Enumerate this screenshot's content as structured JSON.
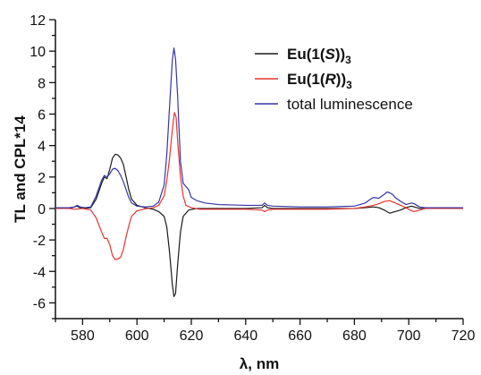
{
  "chart_data": {
    "type": "line",
    "xlabel": "λ, nm",
    "ylabel": "TL and CPL*14",
    "xlim": [
      570,
      720
    ],
    "ylim": [
      -7,
      12
    ],
    "x_ticks": [
      580,
      600,
      620,
      640,
      660,
      680,
      700,
      720
    ],
    "y_ticks": [
      -6,
      -4,
      -2,
      0,
      2,
      4,
      6,
      8,
      10,
      12
    ],
    "grid": false,
    "legend_position": "top-right",
    "legend": [
      {
        "prefix": "Eu(1(",
        "italic": "S",
        "suffix": "))",
        "sub": "3",
        "color": "#1a1a1a"
      },
      {
        "prefix": "Eu(1(",
        "italic": "R",
        "suffix": "))",
        "sub": "3",
        "color": "#e8332e"
      },
      {
        "text": "total luminescence",
        "color": "#3535a8"
      }
    ],
    "series": [
      {
        "name": "Eu(1(S))3",
        "color": "#1a1a1a",
        "points": [
          [
            570,
            0
          ],
          [
            575,
            0
          ],
          [
            577,
            0.1
          ],
          [
            578,
            0.15
          ],
          [
            579,
            0.05
          ],
          [
            581,
            0
          ],
          [
            583,
            0.05
          ],
          [
            585,
            0.6
          ],
          [
            587,
            1.6
          ],
          [
            588,
            2.0
          ],
          [
            589,
            1.9
          ],
          [
            590,
            2.5
          ],
          [
            591,
            3.2
          ],
          [
            592,
            3.45
          ],
          [
            593,
            3.4
          ],
          [
            594,
            3.2
          ],
          [
            595,
            2.8
          ],
          [
            596,
            2.0
          ],
          [
            597,
            1.2
          ],
          [
            598,
            0.6
          ],
          [
            600,
            0.2
          ],
          [
            603,
            0.05
          ],
          [
            606,
            -0.05
          ],
          [
            608,
            -0.2
          ],
          [
            610,
            -0.5
          ],
          [
            611,
            -1.2
          ],
          [
            612,
            -2.8
          ],
          [
            613,
            -4.8
          ],
          [
            613.6,
            -5.6
          ],
          [
            614.2,
            -5.4
          ],
          [
            615,
            -3.5
          ],
          [
            616,
            -1.5
          ],
          [
            617,
            -0.5
          ],
          [
            619,
            -0.1
          ],
          [
            622,
            0
          ],
          [
            640,
            0
          ],
          [
            646,
            0.05
          ],
          [
            647,
            0.2
          ],
          [
            648,
            0.05
          ],
          [
            650,
            0
          ],
          [
            670,
            0
          ],
          [
            680,
            0
          ],
          [
            684,
            0.05
          ],
          [
            687,
            0.1
          ],
          [
            689,
            0.05
          ],
          [
            691,
            -0.1
          ],
          [
            693,
            -0.3
          ],
          [
            695,
            -0.2
          ],
          [
            697,
            -0.1
          ],
          [
            699,
            0.05
          ],
          [
            701,
            0.15
          ],
          [
            702,
            0.1
          ],
          [
            704,
            0
          ],
          [
            720,
            0
          ]
        ]
      },
      {
        "name": "Eu(1(R))3",
        "color": "#e8332e",
        "points": [
          [
            570,
            0
          ],
          [
            575,
            0
          ],
          [
            577,
            -0.05
          ],
          [
            580,
            0
          ],
          [
            583,
            -0.1
          ],
          [
            585,
            -0.6
          ],
          [
            587,
            -1.5
          ],
          [
            588,
            -1.9
          ],
          [
            589,
            -1.9
          ],
          [
            590,
            -2.3
          ],
          [
            591,
            -3.0
          ],
          [
            592,
            -3.25
          ],
          [
            593,
            -3.2
          ],
          [
            594,
            -3.1
          ],
          [
            595,
            -2.6
          ],
          [
            596,
            -1.8
          ],
          [
            597,
            -1.1
          ],
          [
            598,
            -0.5
          ],
          [
            600,
            -0.15
          ],
          [
            603,
            -0.02
          ],
          [
            606,
            0.05
          ],
          [
            608,
            0.2
          ],
          [
            610,
            0.8
          ],
          [
            611,
            1.8
          ],
          [
            612,
            3.2
          ],
          [
            613,
            5.0
          ],
          [
            613.8,
            6.1
          ],
          [
            614.4,
            5.8
          ],
          [
            615,
            4.2
          ],
          [
            616,
            2.0
          ],
          [
            617,
            0.8
          ],
          [
            618,
            0.2
          ],
          [
            620,
            0.05
          ],
          [
            623,
            -0.05
          ],
          [
            630,
            -0.05
          ],
          [
            640,
            -0.05
          ],
          [
            646,
            -0.1
          ],
          [
            647,
            -0.2
          ],
          [
            648,
            -0.1
          ],
          [
            650,
            -0.05
          ],
          [
            660,
            -0.05
          ],
          [
            670,
            -0.05
          ],
          [
            680,
            0
          ],
          [
            684,
            0.1
          ],
          [
            687,
            0.2
          ],
          [
            689,
            0.3
          ],
          [
            691,
            0.45
          ],
          [
            693,
            0.5
          ],
          [
            695,
            0.35
          ],
          [
            697,
            0.2
          ],
          [
            699,
            0.05
          ],
          [
            701,
            -0.15
          ],
          [
            702,
            -0.2
          ],
          [
            704,
            -0.1
          ],
          [
            706,
            0
          ],
          [
            720,
            0
          ]
        ]
      },
      {
        "name": "total luminescence",
        "color": "#3535a8",
        "points": [
          [
            570,
            0.05
          ],
          [
            575,
            0.05
          ],
          [
            577,
            0.1
          ],
          [
            578,
            0.2
          ],
          [
            579,
            0.1
          ],
          [
            581,
            0.05
          ],
          [
            583,
            0.1
          ],
          [
            585,
            0.8
          ],
          [
            587,
            1.8
          ],
          [
            588,
            2.1
          ],
          [
            589,
            2.0
          ],
          [
            590,
            2.2
          ],
          [
            591,
            2.5
          ],
          [
            592,
            2.55
          ],
          [
            593,
            2.4
          ],
          [
            594,
            2.1
          ],
          [
            595,
            1.7
          ],
          [
            596,
            1.2
          ],
          [
            597,
            0.7
          ],
          [
            598,
            0.35
          ],
          [
            600,
            0.15
          ],
          [
            603,
            0.1
          ],
          [
            606,
            0.15
          ],
          [
            608,
            0.4
          ],
          [
            610,
            1.5
          ],
          [
            611,
            3.5
          ],
          [
            612,
            6.5
          ],
          [
            613,
            9.4
          ],
          [
            613.6,
            10.2
          ],
          [
            614.2,
            9.5
          ],
          [
            615,
            7.0
          ],
          [
            616,
            3.0
          ],
          [
            617,
            1.6
          ],
          [
            618,
            1.4
          ],
          [
            619,
            1.2
          ],
          [
            620,
            0.7
          ],
          [
            622,
            0.5
          ],
          [
            625,
            0.35
          ],
          [
            630,
            0.25
          ],
          [
            640,
            0.2
          ],
          [
            646,
            0.2
          ],
          [
            647,
            0.35
          ],
          [
            648,
            0.2
          ],
          [
            650,
            0.15
          ],
          [
            660,
            0.1
          ],
          [
            670,
            0.1
          ],
          [
            680,
            0.15
          ],
          [
            684,
            0.35
          ],
          [
            686,
            0.6
          ],
          [
            687,
            0.7
          ],
          [
            689,
            0.65
          ],
          [
            691,
            0.9
          ],
          [
            692,
            1.05
          ],
          [
            693,
            1.0
          ],
          [
            694,
            0.9
          ],
          [
            695,
            0.7
          ],
          [
            697,
            0.45
          ],
          [
            699,
            0.25
          ],
          [
            701,
            0.35
          ],
          [
            702,
            0.3
          ],
          [
            704,
            0.1
          ],
          [
            706,
            0.05
          ],
          [
            720,
            0.05
          ]
        ]
      }
    ]
  }
}
